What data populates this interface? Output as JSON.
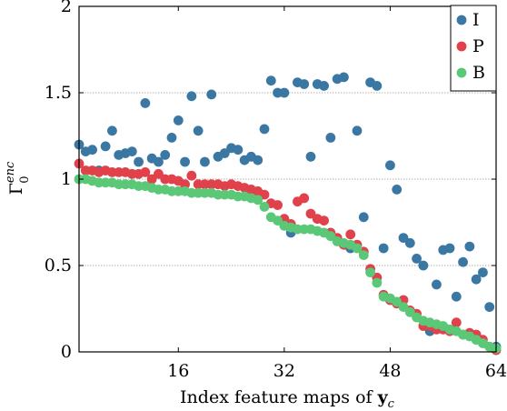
{
  "chart_data": {
    "type": "scatter",
    "xlabel_text": "Index feature maps of ",
    "xlabel_var": "y",
    "xlabel_sub": "c",
    "ylabel_main": "Γ",
    "ylabel_sub": "0",
    "ylabel_sup": "enc",
    "xlim": [
      1,
      64
    ],
    "ylim": [
      0,
      2
    ],
    "xticks": [
      16,
      32,
      48,
      64
    ],
    "xtick_labels": [
      "16",
      "32",
      "48",
      "64"
    ],
    "yticks": [
      0,
      0.5,
      1,
      1.5,
      2
    ],
    "ytick_labels": [
      "0",
      "0.5",
      "1",
      "1.5",
      "2"
    ],
    "grid": "horizontal dashed",
    "legend_position": "top-right",
    "series": [
      {
        "name": "I",
        "color": "#3b77a3",
        "x": [
          1,
          2,
          3,
          4,
          5,
          6,
          7,
          8,
          9,
          10,
          11,
          12,
          13,
          14,
          15,
          16,
          17,
          18,
          19,
          20,
          21,
          22,
          23,
          24,
          25,
          26,
          27,
          28,
          29,
          30,
          31,
          32,
          33,
          34,
          35,
          36,
          37,
          38,
          39,
          40,
          41,
          42,
          43,
          44,
          45,
          46,
          47,
          48,
          49,
          50,
          51,
          52,
          53,
          54,
          55,
          56,
          57,
          58,
          59,
          60,
          61,
          62,
          63,
          64
        ],
        "y": [
          1.2,
          1.16,
          1.17,
          1.05,
          1.19,
          1.28,
          1.14,
          1.15,
          1.16,
          1.1,
          1.44,
          1.12,
          1.1,
          1.14,
          1.24,
          1.34,
          1.1,
          1.48,
          1.28,
          1.1,
          1.49,
          1.13,
          1.15,
          1.18,
          1.17,
          1.11,
          1.13,
          1.11,
          1.29,
          1.57,
          1.5,
          1.5,
          0.69,
          1.56,
          1.55,
          1.13,
          1.55,
          1.54,
          1.24,
          1.58,
          1.59,
          0.6,
          1.28,
          0.78,
          1.56,
          1.54,
          0.6,
          1.08,
          0.94,
          0.66,
          0.63,
          0.54,
          0.5,
          0.12,
          0.39,
          0.59,
          0.6,
          0.32,
          0.52,
          0.61,
          0.42,
          0.46,
          0.26,
          0.03
        ]
      },
      {
        "name": "P",
        "color": "#e0414a",
        "x": [
          1,
          2,
          3,
          4,
          5,
          6,
          7,
          8,
          9,
          10,
          11,
          12,
          13,
          14,
          15,
          16,
          17,
          18,
          19,
          20,
          21,
          22,
          23,
          24,
          25,
          26,
          27,
          28,
          29,
          30,
          31,
          32,
          33,
          34,
          35,
          36,
          37,
          38,
          39,
          40,
          41,
          42,
          43,
          44,
          45,
          46,
          47,
          48,
          49,
          50,
          51,
          52,
          53,
          54,
          55,
          56,
          57,
          58,
          59,
          60,
          61,
          62,
          63,
          64
        ],
        "y": [
          1.09,
          1.05,
          1.05,
          1.04,
          1.05,
          1.04,
          1.04,
          1.04,
          1.03,
          1.03,
          1.04,
          1.0,
          1.03,
          1.0,
          1.0,
          0.99,
          0.97,
          1.02,
          0.97,
          0.97,
          0.97,
          0.97,
          0.96,
          0.97,
          0.96,
          0.95,
          0.94,
          0.93,
          0.91,
          0.86,
          0.85,
          0.77,
          0.74,
          0.87,
          0.89,
          0.8,
          0.77,
          0.76,
          0.69,
          0.66,
          0.62,
          0.68,
          0.62,
          0.58,
          0.48,
          0.43,
          0.33,
          0.3,
          0.28,
          0.3,
          0.24,
          0.22,
          0.15,
          0.15,
          0.13,
          0.13,
          0.12,
          0.17,
          0.1,
          0.11,
          0.1,
          0.07,
          0.03,
          0.01
        ]
      },
      {
        "name": "B",
        "color": "#5bc878",
        "x": [
          1,
          2,
          3,
          4,
          5,
          6,
          7,
          8,
          9,
          10,
          11,
          12,
          13,
          14,
          15,
          16,
          17,
          18,
          19,
          20,
          21,
          22,
          23,
          24,
          25,
          26,
          27,
          28,
          29,
          30,
          31,
          32,
          33,
          34,
          35,
          36,
          37,
          38,
          39,
          40,
          41,
          42,
          43,
          44,
          45,
          46,
          47,
          48,
          49,
          50,
          51,
          52,
          53,
          54,
          55,
          56,
          57,
          58,
          59,
          60,
          61,
          62,
          63,
          64
        ],
        "y": [
          1.0,
          1.0,
          0.99,
          0.98,
          0.98,
          0.98,
          0.97,
          0.97,
          0.97,
          0.96,
          0.96,
          0.95,
          0.94,
          0.94,
          0.93,
          0.93,
          0.93,
          0.92,
          0.92,
          0.92,
          0.92,
          0.91,
          0.91,
          0.91,
          0.9,
          0.9,
          0.89,
          0.88,
          0.84,
          0.78,
          0.76,
          0.73,
          0.72,
          0.71,
          0.71,
          0.71,
          0.7,
          0.69,
          0.67,
          0.64,
          0.63,
          0.62,
          0.6,
          0.56,
          0.46,
          0.4,
          0.32,
          0.31,
          0.29,
          0.26,
          0.23,
          0.2,
          0.18,
          0.17,
          0.16,
          0.15,
          0.13,
          0.12,
          0.1,
          0.09,
          0.07,
          0.05,
          0.03,
          0.02
        ]
      }
    ]
  }
}
